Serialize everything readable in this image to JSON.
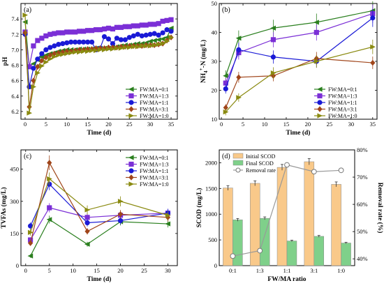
{
  "chart_data": [
    {
      "id": "a",
      "panel_label": "(a)",
      "type": "line",
      "xlabel": "Time (d)",
      "ylabel": "pH",
      "xlim": [
        -1,
        36.5
      ],
      "ylim": [
        6.1,
        7.6
      ],
      "xticks": [
        "0",
        "5",
        "10",
        "15",
        "20",
        "25",
        "30",
        "35"
      ],
      "yticks": [
        "6.2",
        "6.4",
        "6.6",
        "6.8",
        "7.0",
        "7.2",
        "7.4"
      ],
      "legend_position": "bottom-right",
      "x": [
        0,
        1,
        2,
        3,
        4,
        5,
        6,
        7,
        8,
        9,
        10,
        11,
        12,
        13,
        14,
        15,
        16,
        17,
        18,
        19,
        20,
        21,
        22,
        23,
        24,
        25,
        26,
        27,
        28,
        29,
        30,
        31,
        32,
        33,
        34,
        35
      ],
      "series": [
        {
          "name": "FW:MA=0:1",
          "color": "#2a7f1e",
          "marker": "tri-left",
          "values": [
            7.36,
            6.78,
            6.82,
            6.87,
            6.91,
            6.93,
            6.95,
            6.96,
            6.98,
            6.99,
            7.0,
            7.0,
            7.0,
            7.01,
            7.01,
            7.01,
            7.01,
            7.02,
            7.02,
            7.02,
            7.02,
            7.03,
            7.04,
            7.05,
            7.06,
            7.06,
            7.07,
            7.08,
            7.08,
            7.09,
            7.11,
            7.12,
            7.13,
            7.14,
            7.16,
            7.28
          ]
        },
        {
          "name": "FW:MA=1:3",
          "color": "#7b2fd6",
          "marker": "square",
          "values": [
            7.23,
            6.78,
            7.05,
            7.12,
            7.15,
            7.18,
            7.2,
            7.21,
            7.22,
            7.22,
            7.23,
            7.23,
            7.23,
            7.24,
            7.24,
            7.25,
            7.25,
            7.26,
            7.26,
            7.27,
            7.28,
            7.27,
            7.29,
            7.29,
            7.3,
            7.3,
            7.31,
            7.31,
            7.32,
            7.32,
            7.33,
            7.33,
            7.34,
            7.37,
            7.38,
            7.39
          ]
        },
        {
          "name": "FW:MA=1:1",
          "color": "#1a1ad6",
          "marker": "circle",
          "values": [
            7.2,
            6.52,
            6.76,
            6.88,
            6.95,
            7.0,
            7.03,
            7.05,
            7.07,
            7.08,
            7.09,
            7.1,
            7.1,
            7.1,
            7.1,
            7.1,
            7.1,
            7.0,
            7.02,
            7.17,
            7.14,
            7.08,
            7.15,
            7.13,
            7.13,
            7.16,
            7.18,
            7.2,
            7.18,
            7.19,
            7.2,
            7.21,
            7.19,
            7.22,
            7.26,
            7.24
          ]
        },
        {
          "name": "FW:MA=3:1",
          "color": "#a0451a",
          "marker": "diamond",
          "values": [
            7.22,
            6.26,
            6.6,
            6.78,
            6.86,
            6.9,
            6.93,
            6.95,
            6.96,
            6.97,
            6.98,
            6.98,
            6.99,
            7.0,
            7.0,
            7.01,
            7.01,
            7.02,
            7.02,
            7.02,
            7.03,
            7.03,
            7.03,
            7.04,
            7.04,
            7.05,
            7.05,
            7.05,
            7.05,
            7.06,
            7.06,
            7.06,
            7.07,
            7.08,
            7.12,
            7.16
          ]
        },
        {
          "name": "FW:MA=1:0",
          "color": "#8a8a10",
          "marker": "tri-right",
          "values": [
            7.45,
            6.18,
            6.52,
            6.7,
            6.79,
            6.84,
            6.88,
            6.91,
            6.93,
            6.94,
            6.95,
            6.96,
            6.97,
            6.97,
            6.98,
            6.98,
            6.99,
            6.99,
            7.0,
            7.0,
            7.01,
            7.01,
            7.02,
            7.02,
            7.03,
            7.03,
            7.04,
            7.04,
            7.05,
            7.05,
            7.05,
            7.06,
            7.07,
            7.08,
            7.11,
            7.16
          ]
        }
      ]
    },
    {
      "id": "b",
      "panel_label": "(b)",
      "type": "line",
      "xlabel": "Time (d)",
      "ylabel_main": "NH",
      "ylabel_sub": "4",
      "ylabel_sup": "+",
      "ylabel_tail": "-N (mg/L)",
      "xlim": [
        -0.5,
        36
      ],
      "ylim": [
        10,
        50
      ],
      "xticks": [
        "0",
        "5",
        "10",
        "15",
        "20",
        "25",
        "30",
        "35"
      ],
      "yticks": [
        "10",
        "20",
        "30",
        "40",
        "50"
      ],
      "legend_position": "bottom-right",
      "x": [
        1,
        4,
        12,
        22,
        35
      ],
      "series": [
        {
          "name": "FW:MA=0:1",
          "color": "#2a7f1e",
          "marker": "tri-left",
          "values": [
            25,
            38,
            41.5,
            43.5,
            47.5
          ]
        },
        {
          "name": "FW:MA=1:3",
          "color": "#7b2fd6",
          "marker": "square",
          "values": [
            22.5,
            33,
            37.5,
            40,
            46.5
          ]
        },
        {
          "name": "FW:MA=1:1",
          "color": "#1a1ad6",
          "marker": "circle",
          "values": [
            20.5,
            34,
            31.5,
            30,
            45
          ]
        },
        {
          "name": "FW:MA=3:1",
          "color": "#a0451a",
          "marker": "diamond",
          "values": [
            14,
            24.5,
            25,
            31,
            29.5
          ]
        },
        {
          "name": "FW:MA=1:0",
          "color": "#8a8a10",
          "marker": "tri-right",
          "values": [
            12.5,
            17.5,
            26,
            30,
            35
          ]
        }
      ]
    },
    {
      "id": "c",
      "panel_label": "(c)",
      "type": "line",
      "xlabel": "Time (d)",
      "ylabel": "TVFAs (mg/L)",
      "xlim": [
        -1,
        32
      ],
      "ylim": [
        0,
        540
      ],
      "xticks": [
        "0",
        "5",
        "10",
        "15",
        "20",
        "25",
        "30"
      ],
      "yticks": [
        "0",
        "150",
        "300",
        "450"
      ],
      "legend_position": "top-right",
      "x": [
        1,
        5,
        13,
        20,
        30
      ],
      "series": [
        {
          "name": "FW:MA=0:1",
          "color": "#2a7f1e",
          "marker": "tri-left",
          "values": [
            45,
            215,
            100,
            205,
            195
          ]
        },
        {
          "name": "FW:MA=1:3",
          "color": "#7b2fd6",
          "marker": "square",
          "values": [
            120,
            270,
            225,
            235,
            245
          ]
        },
        {
          "name": "FW:MA=1:1",
          "color": "#1a1ad6",
          "marker": "circle",
          "values": [
            185,
            380,
            200,
            210,
            245
          ]
        },
        {
          "name": "FW:MA=3:1",
          "color": "#a0451a",
          "marker": "diamond",
          "values": [
            105,
            480,
            160,
            240,
            225
          ]
        },
        {
          "name": "FW:MA=1:0",
          "color": "#8a8a10",
          "marker": "tri-right",
          "values": [
            155,
            405,
            260,
            300,
            235
          ]
        }
      ]
    },
    {
      "id": "d",
      "panel_label": "(d)",
      "type": "bar",
      "xlabel": "FW/MA ratio",
      "ylabel": "SCOD (mg/L)",
      "y2label": "Removal rate (%)",
      "categories": [
        "0:1",
        "1:3",
        "1:1",
        "3:1",
        "1:0"
      ],
      "ylim": [
        0,
        2250
      ],
      "y2lim": [
        0.375,
        0.8
      ],
      "yticks": [
        "0",
        "500",
        "1000",
        "1500",
        "2000"
      ],
      "y2ticks": [
        "40%",
        "50%",
        "60%",
        "70%",
        "80%"
      ],
      "legend_position": "top-left",
      "series": [
        {
          "name": "Initial SCOD",
          "color": "#f9c98a",
          "values": [
            1510,
            1600,
            1910,
            2020,
            1580
          ]
        },
        {
          "name": "Final SCOD",
          "color": "#7fd08a",
          "values": [
            890,
            920,
            480,
            570,
            440
          ]
        },
        {
          "name": "Removal rate",
          "color": "#999999",
          "axis": "right",
          "values": [
            0.41,
            0.43,
            0.745,
            0.72,
            0.725
          ]
        }
      ]
    }
  ]
}
